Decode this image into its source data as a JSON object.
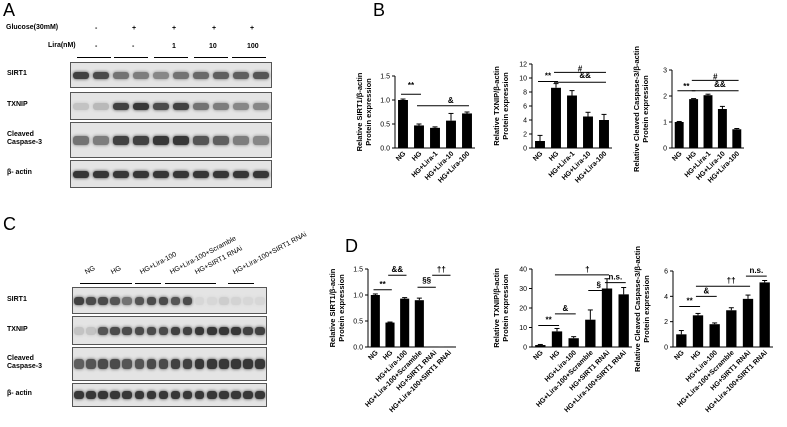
{
  "panel_letters": [
    "A",
    "B",
    "C",
    "D"
  ],
  "panel_a": {
    "treat_labels": [
      "Glucose(30mM)",
      "Lira(nM)"
    ],
    "glucose": [
      "-",
      "+",
      "+",
      "+",
      "+"
    ],
    "lira": [
      "-",
      "-",
      "1",
      "10",
      "100"
    ],
    "blots": [
      "SIRT1",
      "TXNIP",
      "Cleaved\nCaspase-3",
      "β- actin"
    ]
  },
  "panel_c": {
    "groups": [
      "NG",
      "HG",
      "HG+Lira-100",
      "HG+Lira-100+Scramble",
      "HG+SIRT1 RNAi",
      "HG+Lira-100+SIRT1 RNAi"
    ],
    "blots": [
      "SIRT1",
      "TXNIP",
      "Cleaved\nCaspase-3",
      "β- actin"
    ]
  },
  "chart_data": [
    {
      "type": "bar",
      "panel": "B",
      "ylabel": "Relative SIRT1/β-actin\nProtein expression",
      "ylim": [
        0,
        1.5
      ],
      "yticks": [
        "0.0",
        "0.5",
        "1.0",
        "1.5"
      ],
      "categories": [
        "NG",
        "HG",
        "HG+Lira-1",
        "HG+Lira-10",
        "HG+Lira-100"
      ],
      "values": [
        1.0,
        0.47,
        0.42,
        0.57,
        0.72
      ],
      "errors": [
        0.02,
        0.03,
        0.02,
        0.15,
        0.03
      ],
      "annotations": [
        "**",
        "&"
      ]
    },
    {
      "type": "bar",
      "panel": "B",
      "ylabel": "Relative TXNIP/β-actin\nProtein expression",
      "ylim": [
        0,
        12
      ],
      "yticks": [
        "0",
        "2",
        "4",
        "6",
        "8",
        "10",
        "12"
      ],
      "categories": [
        "NG",
        "HG",
        "HG+Lira-1",
        "HG+Lira-10",
        "HG+Lira-100"
      ],
      "values": [
        1.0,
        8.6,
        7.5,
        4.5,
        4.0
      ],
      "errors": [
        0.8,
        0.6,
        0.7,
        0.6,
        0.8
      ],
      "annotations": [
        "**",
        "#",
        "&&"
      ]
    },
    {
      "type": "bar",
      "panel": "B",
      "ylabel": "Relative Cleaved Caspase-3/β-actin\nProtein expression",
      "ylim": [
        0,
        3
      ],
      "yticks": [
        "0",
        "1",
        "2",
        "3"
      ],
      "categories": [
        "NG",
        "HG",
        "HG+Lira-1",
        "HG+Lira-10",
        "HG+Lira-100"
      ],
      "values": [
        1.0,
        1.88,
        2.03,
        1.5,
        0.72
      ],
      "errors": [
        0.02,
        0.02,
        0.04,
        0.1,
        0.03
      ],
      "annotations": [
        "**",
        "#",
        "&&"
      ]
    },
    {
      "type": "bar",
      "panel": "D",
      "ylabel": "Relative SIRT1/β-actin\nProtein expression",
      "ylim": [
        0,
        1.5
      ],
      "yticks": [
        "0.0",
        "0.5",
        "1.0",
        "1.5"
      ],
      "categories": [
        "NG",
        "HG",
        "HG+Lira-100",
        "HG+Lira-100+Scramble",
        "HG+SIRT1 RNAi",
        "HG+Lira-100+SIRT1 RNAi"
      ],
      "values": [
        1.0,
        0.47,
        0.93,
        0.9,
        0.01,
        0.01
      ],
      "errors": [
        0.02,
        0.01,
        0.02,
        0.04,
        0.0,
        0.0
      ],
      "annotations": [
        "**",
        "&&",
        "§§",
        "††"
      ]
    },
    {
      "type": "bar",
      "panel": "D",
      "ylabel": "Relative TXNIP/β-actin\nProtein expression",
      "ylim": [
        0,
        40
      ],
      "yticks": [
        "0",
        "10",
        "20",
        "30",
        "40"
      ],
      "categories": [
        "NG",
        "HG",
        "HG+Lira-100",
        "HG+Lira-100+Scramble",
        "HG+SIRT1 RNAi",
        "HG+Lira-100+SIRT1 RNAi"
      ],
      "values": [
        1.0,
        8.0,
        4.5,
        14.0,
        30.0,
        27.0
      ],
      "errors": [
        0.3,
        1.5,
        0.8,
        5.0,
        5.0,
        3.5
      ],
      "annotations": [
        "**",
        "&",
        "§",
        "†",
        "n.s."
      ]
    },
    {
      "type": "bar",
      "panel": "D",
      "ylabel": "Relative Cleaved Caspase-3/β-actin\nProtein expression",
      "ylim": [
        0,
        6
      ],
      "yticks": [
        "0",
        "2",
        "4",
        "6"
      ],
      "categories": [
        "NG",
        "HG",
        "HG+Lira-100",
        "HG+Lira-100+Scramble",
        "HG+SIRT1 RNAi",
        "HG+Lira-100+SIRT1 RNAi"
      ],
      "values": [
        1.0,
        2.5,
        1.8,
        2.9,
        3.8,
        5.1
      ],
      "errors": [
        0.3,
        0.15,
        0.1,
        0.2,
        0.3,
        0.15
      ],
      "annotations": [
        "**",
        "&",
        "††",
        "n.s."
      ]
    }
  ]
}
